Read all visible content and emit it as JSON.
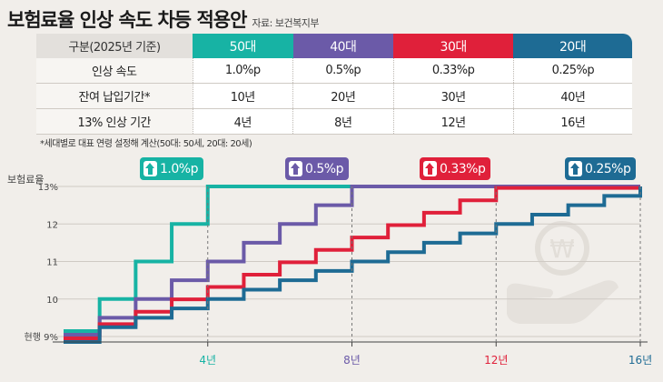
{
  "header": {
    "title": "보험료율 인상 속도 차등 적용안",
    "source": "자료: 보건복지부"
  },
  "table": {
    "corner": "구분(2025년 기준)",
    "columns": [
      "50대",
      "40대",
      "30대",
      "20대"
    ],
    "rows": [
      {
        "label": "인상 속도",
        "values": [
          "1.0%p",
          "0.5%p",
          "0.33%p",
          "0.25%p"
        ]
      },
      {
        "label": "잔여 납입기간*",
        "values": [
          "10년",
          "20년",
          "30년",
          "40년"
        ]
      },
      {
        "label": "13% 인상 기간",
        "values": [
          "4년",
          "8년",
          "12년",
          "16년"
        ]
      }
    ]
  },
  "footnote": "*세대별로 대표 연령 설정해 계산(50대: 50세, 20대: 20세)",
  "colors": {
    "50s": "#17b3a4",
    "40s": "#6b5aa8",
    "30s": "#e0203a",
    "20s": "#1e6b94"
  },
  "chart_data": {
    "type": "line",
    "title": "보험료율 인상 속도 차등 적용안",
    "ylabel": "보험료율",
    "ylim": [
      9,
      13
    ],
    "y_ticks": [
      "현행 9%",
      "10",
      "11",
      "12",
      "13%"
    ],
    "xlim": [
      0,
      16
    ],
    "x_ticks": [
      {
        "value": 4,
        "label": "4년",
        "series": "50대"
      },
      {
        "value": 8,
        "label": "8년",
        "series": "40대"
      },
      {
        "value": 12,
        "label": "12년",
        "series": "30대"
      },
      {
        "value": 16,
        "label": "16년",
        "series": "20대"
      }
    ],
    "series": [
      {
        "name": "50대",
        "label": "1.0%p",
        "rate": 1.0,
        "years": 4,
        "start": 9,
        "end": 13
      },
      {
        "name": "40대",
        "label": "0.5%p",
        "rate": 0.5,
        "years": 8,
        "start": 9,
        "end": 13
      },
      {
        "name": "30대",
        "label": "0.33%p",
        "rate": 0.33,
        "years": 12,
        "start": 9,
        "end": 13
      },
      {
        "name": "20대",
        "label": "0.25%p",
        "rate": 0.25,
        "years": 16,
        "start": 9,
        "end": 13
      }
    ]
  }
}
